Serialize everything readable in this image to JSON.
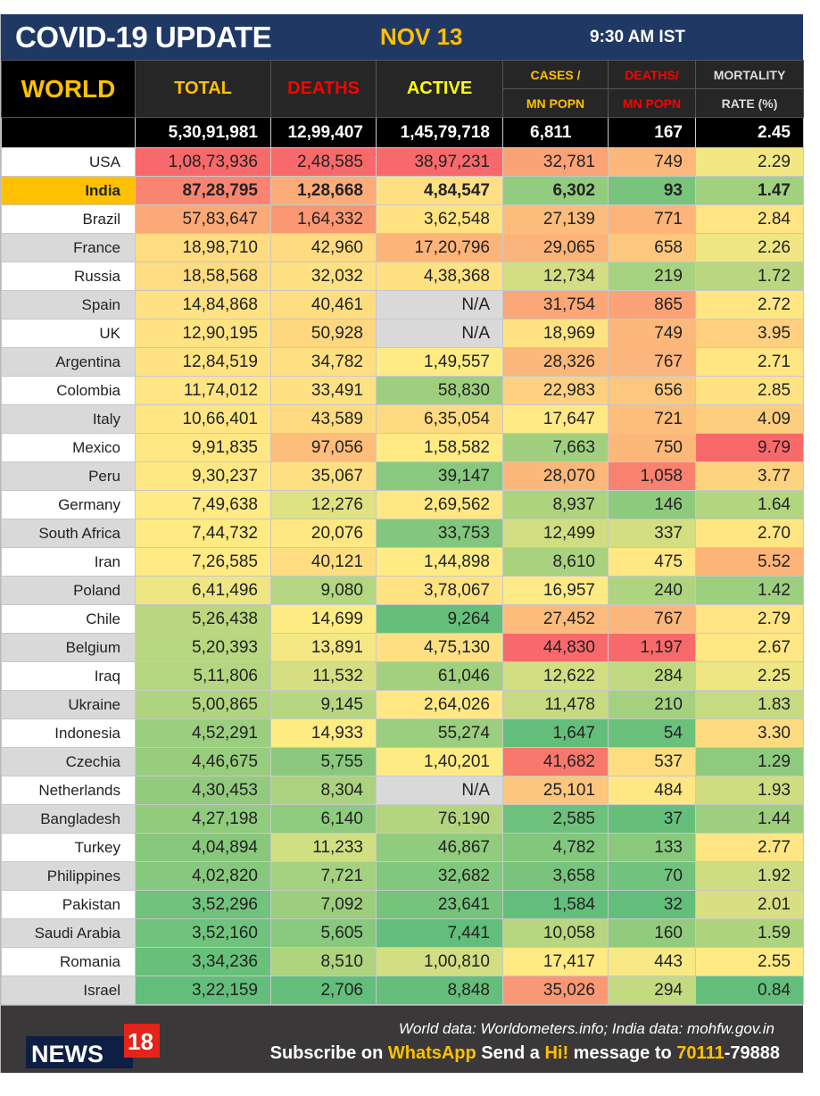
{
  "header": {
    "title": "COVID-19 UPDATE",
    "date": "NOV 13",
    "time": "9:30 AM IST"
  },
  "columns": {
    "region": "WORLD",
    "total": "TOTAL",
    "deaths": "DEATHS",
    "active": "ACTIVE",
    "cases_mn_1": "CASES /",
    "cases_mn_2": "MN POPN",
    "deaths_mn_1": "DEATHS/",
    "deaths_mn_2": "MN POPN",
    "mort_1": "MORTALITY",
    "mort_2": "RATE (%)"
  },
  "world": [
    "5,30,91,981",
    "12,99,407",
    "1,45,79,718",
    "6,811",
    "167",
    "2.45"
  ],
  "highlight_country": "India",
  "colors": {
    "low": "#63BE7B",
    "mid": "#FFEB84",
    "high": "#F8696B",
    "na": "#d9d9d9",
    "highlight": "#ffc000"
  },
  "rows": [
    [
      "USA",
      "1,08,73,936",
      "2,48,585",
      "38,97,231",
      "32,781",
      "749",
      "2.29"
    ],
    [
      "India",
      "87,28,795",
      "1,28,668",
      "4,84,547",
      "6,302",
      "93",
      "1.47"
    ],
    [
      "Brazil",
      "57,83,647",
      "1,64,332",
      "3,62,548",
      "27,139",
      "771",
      "2.84"
    ],
    [
      "France",
      "18,98,710",
      "42,960",
      "17,20,796",
      "29,065",
      "658",
      "2.26"
    ],
    [
      "Russia",
      "18,58,568",
      "32,032",
      "4,38,368",
      "12,734",
      "219",
      "1.72"
    ],
    [
      "Spain",
      "14,84,868",
      "40,461",
      "N/A",
      "31,754",
      "865",
      "2.72"
    ],
    [
      "UK",
      "12,90,195",
      "50,928",
      "N/A",
      "18,969",
      "749",
      "3.95"
    ],
    [
      "Argentina",
      "12,84,519",
      "34,782",
      "1,49,557",
      "28,326",
      "767",
      "2.71"
    ],
    [
      "Colombia",
      "11,74,012",
      "33,491",
      "58,830",
      "22,983",
      "656",
      "2.85"
    ],
    [
      "Italy",
      "10,66,401",
      "43,589",
      "6,35,054",
      "17,647",
      "721",
      "4.09"
    ],
    [
      "Mexico",
      "9,91,835",
      "97,056",
      "1,58,582",
      "7,663",
      "750",
      "9.79"
    ],
    [
      "Peru",
      "9,30,237",
      "35,067",
      "39,147",
      "28,070",
      "1,058",
      "3.77"
    ],
    [
      "Germany",
      "7,49,638",
      "12,276",
      "2,69,562",
      "8,937",
      "146",
      "1.64"
    ],
    [
      "South Africa",
      "7,44,732",
      "20,076",
      "33,753",
      "12,499",
      "337",
      "2.70"
    ],
    [
      "Iran",
      "7,26,585",
      "40,121",
      "1,44,898",
      "8,610",
      "475",
      "5.52"
    ],
    [
      "Poland",
      "6,41,496",
      "9,080",
      "3,78,067",
      "16,957",
      "240",
      "1.42"
    ],
    [
      "Chile",
      "5,26,438",
      "14,699",
      "9,264",
      "27,452",
      "767",
      "2.79"
    ],
    [
      "Belgium",
      "5,20,393",
      "13,891",
      "4,75,130",
      "44,830",
      "1,197",
      "2.67"
    ],
    [
      "Iraq",
      "5,11,806",
      "11,532",
      "61,046",
      "12,622",
      "284",
      "2.25"
    ],
    [
      "Ukraine",
      "5,00,865",
      "9,145",
      "2,64,026",
      "11,478",
      "210",
      "1.83"
    ],
    [
      "Indonesia",
      "4,52,291",
      "14,933",
      "55,274",
      "1,647",
      "54",
      "3.30"
    ],
    [
      "Czechia",
      "4,46,675",
      "5,755",
      "1,40,201",
      "41,682",
      "537",
      "1.29"
    ],
    [
      "Netherlands",
      "4,30,453",
      "8,304",
      "N/A",
      "25,101",
      "484",
      "1.93"
    ],
    [
      "Bangladesh",
      "4,27,198",
      "6,140",
      "76,190",
      "2,585",
      "37",
      "1.44"
    ],
    [
      "Turkey",
      "4,04,894",
      "11,233",
      "46,867",
      "4,782",
      "133",
      "2.77"
    ],
    [
      "Philippines",
      "4,02,820",
      "7,721",
      "32,682",
      "3,658",
      "70",
      "1.92"
    ],
    [
      "Pakistan",
      "3,52,296",
      "7,092",
      "23,641",
      "1,584",
      "32",
      "2.01"
    ],
    [
      "Saudi Arabia",
      "3,52,160",
      "5,605",
      "7,441",
      "10,058",
      "160",
      "1.59"
    ],
    [
      "Romania",
      "3,34,236",
      "8,510",
      "1,00,810",
      "17,417",
      "443",
      "2.55"
    ],
    [
      "Israel",
      "3,22,159",
      "2,706",
      "8,848",
      "35,026",
      "294",
      "0.84"
    ]
  ],
  "footer": {
    "logo": "NEWS18",
    "source": "World data: Worldometers.info; India data: mohfw.gov.in",
    "sub_1": "Subscribe on ",
    "sub_2": "WhatsApp",
    "sub_3": " Send a ",
    "sub_4": "Hi!",
    "sub_5": " message to ",
    "sub_6": "70111",
    "sub_7": "-79888"
  }
}
